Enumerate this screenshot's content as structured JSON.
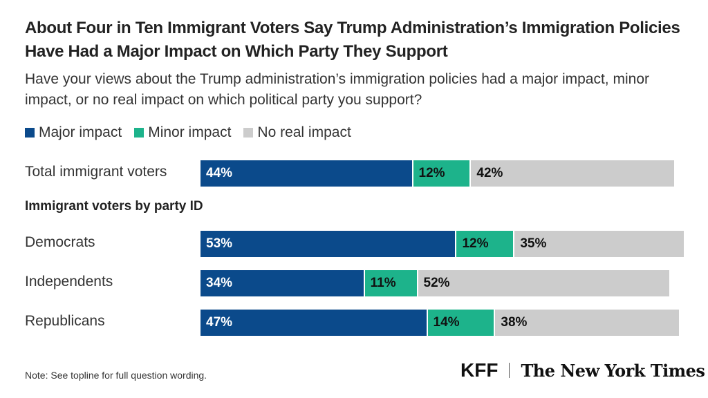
{
  "chart_data": {
    "type": "bar",
    "orientation": "horizontal-stacked",
    "title": "About Four in Ten Immigrant Voters Say Trump Administration’s Immigration Policies Have Had a Major Impact on Which Party They Support",
    "subtitle": "Have your views about the Trump administration’s immigration policies had a major impact, minor impact, or no real impact on which political party you support?",
    "group_label": "Immigrant voters by party ID",
    "categories": [
      "Total immigrant voters",
      "Democrats",
      "Independents",
      "Republicans"
    ],
    "series": [
      {
        "name": "Major impact",
        "color": "#0b4a8b",
        "values": [
          44,
          53,
          34,
          47
        ]
      },
      {
        "name": "Minor impact",
        "color": "#1db38b",
        "values": [
          12,
          12,
          11,
          14
        ]
      },
      {
        "name": "No real impact",
        "color": "#cccccc",
        "values": [
          42,
          35,
          52,
          38
        ]
      }
    ],
    "unit": "%",
    "legend_position": "top-left",
    "grid": false
  },
  "note": "Note: See topline for full question wording.",
  "logos": {
    "kff": "KFF",
    "nyt": "The New York Times"
  }
}
